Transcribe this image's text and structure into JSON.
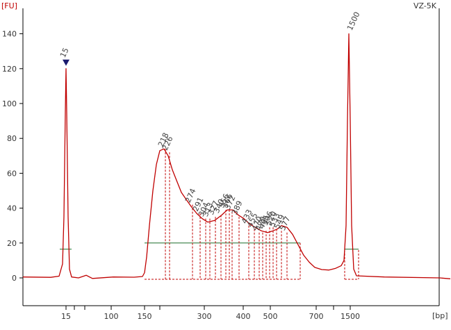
{
  "chart_data": {
    "type": "line",
    "title": "VZ-5K",
    "y_unit_label": "[FU]",
    "x_unit_label": "[bp]",
    "ylim": [
      -8,
      146
    ],
    "y_ticks": [
      0,
      20,
      40,
      60,
      80,
      100,
      120,
      140
    ],
    "x_tick_labels": [
      "15",
      "100",
      "150",
      "300",
      "400",
      "500",
      "700",
      "1500"
    ],
    "grid": false,
    "colors": {
      "trace": "#c00000",
      "baseline": "#1f6e2c",
      "marker_lower": "#1f7a1f",
      "marker_upper": "#8e44ad",
      "marker_triangle": "#1a1a6e",
      "peak_label": "#444444"
    },
    "series": [
      {
        "points": [
          [
            0,
            0.5
          ],
          [
            40,
            0.3
          ],
          [
            52,
            1
          ],
          [
            57,
            8
          ],
          [
            59,
            35
          ],
          [
            61,
            95
          ],
          [
            62,
            120
          ],
          [
            63,
            95
          ],
          [
            65,
            35
          ],
          [
            67,
            5
          ],
          [
            70,
            0.5
          ],
          [
            80,
            0
          ],
          [
            91,
            1.5
          ],
          [
            100,
            -0.3
          ],
          [
            130,
            0.5
          ],
          [
            160,
            0.4
          ],
          [
            172,
            0.8
          ],
          [
            175,
            3
          ],
          [
            178,
            12
          ],
          [
            182,
            30
          ],
          [
            187,
            50
          ],
          [
            192,
            65
          ],
          [
            197,
            73
          ],
          [
            203,
            74
          ],
          [
            209,
            70
          ],
          [
            215,
            62
          ],
          [
            222,
            55
          ],
          [
            228,
            49
          ],
          [
            235,
            45
          ],
          [
            242,
            41
          ],
          [
            250,
            37
          ],
          [
            258,
            34
          ],
          [
            266,
            32
          ],
          [
            276,
            33
          ],
          [
            286,
            36
          ],
          [
            294,
            39
          ],
          [
            302,
            39
          ],
          [
            310,
            36
          ],
          [
            318,
            34
          ],
          [
            326,
            31
          ],
          [
            334,
            29
          ],
          [
            343,
            27
          ],
          [
            352,
            26
          ],
          [
            360,
            27
          ],
          [
            366,
            28
          ],
          [
            372,
            30
          ],
          [
            380,
            29
          ],
          [
            388,
            25
          ],
          [
            396,
            19
          ],
          [
            404,
            13
          ],
          [
            412,
            9
          ],
          [
            420,
            6
          ],
          [
            430,
            4.8
          ],
          [
            440,
            4.5
          ],
          [
            450,
            5.5
          ],
          [
            458,
            7
          ],
          [
            462,
            10
          ],
          [
            465,
            30
          ],
          [
            467,
            90
          ],
          [
            469,
            140
          ],
          [
            471,
            90
          ],
          [
            473,
            30
          ],
          [
            476,
            5
          ],
          [
            480,
            1.2
          ],
          [
            520,
            0.5
          ],
          [
            600,
            0
          ],
          [
            615,
            -0.5
          ]
        ]
      }
    ],
    "lower_marker": {
      "label": "15",
      "peak_fu": 122
    },
    "upper_marker": {
      "label": "1500",
      "peak_fu": 140
    },
    "peak_labels": [
      {
        "text": "218",
        "height_fu": 74
      },
      {
        "text": "226",
        "height_fu": 72
      },
      {
        "text": "274",
        "height_fu": 42
      },
      {
        "text": "291",
        "height_fu": 37
      },
      {
        "text": "304",
        "height_fu": 34
      },
      {
        "text": "313",
        "height_fu": 34
      },
      {
        "text": "327",
        "height_fu": 35
      },
      {
        "text": "340",
        "height_fu": 36
      },
      {
        "text": "356",
        "height_fu": 39
      },
      {
        "text": "366",
        "height_fu": 39
      },
      {
        "text": "372",
        "height_fu": 38
      },
      {
        "text": "389",
        "height_fu": 35
      },
      {
        "text": "433",
        "height_fu": 30
      },
      {
        "text": "455",
        "height_fu": 28
      },
      {
        "text": "470",
        "height_fu": 26
      },
      {
        "text": "479",
        "height_fu": 26
      },
      {
        "text": "491",
        "height_fu": 27
      },
      {
        "text": "506",
        "height_fu": 29
      },
      {
        "text": "520",
        "height_fu": 29
      },
      {
        "text": "533",
        "height_fu": 28
      },
      {
        "text": "549",
        "height_fu": 27
      },
      {
        "text": "577",
        "height_fu": 26
      }
    ]
  }
}
